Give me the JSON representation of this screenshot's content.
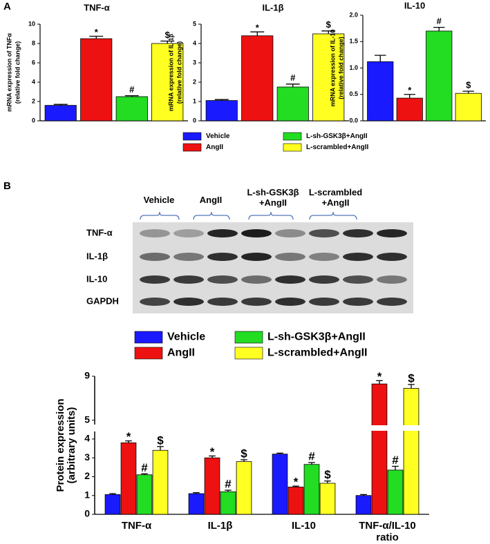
{
  "panel_labels": [
    "A",
    "B"
  ],
  "blot": {
    "lanes": [
      "Vehicle",
      "AngII",
      "L-sh-GSK3β +AngII",
      "L-scrambled +AngII"
    ],
    "rows": [
      "TNF-α",
      "IL-1β",
      "IL-10",
      "GAPDH"
    ]
  },
  "chart_data": [
    {
      "type": "bar",
      "title": "TNF-α",
      "ylabel": [
        "mRNA expression of TNFα",
        "(relative fold change)"
      ],
      "categories": [
        null
      ],
      "ylim": [
        0,
        10
      ],
      "yticks": [
        0,
        2,
        4,
        6,
        8,
        10
      ],
      "series": [
        {
          "name": "Vehicle",
          "color": "#1a1aff",
          "values": [
            1.6
          ],
          "errors": [
            0.1
          ]
        },
        {
          "name": "AngII",
          "color": "#ee1111",
          "values": [
            8.5
          ],
          "errors": [
            0.25
          ],
          "annotation": "*"
        },
        {
          "name": "L-sh-GSK3β+AngII",
          "color": "#22dd22",
          "values": [
            2.5
          ],
          "errors": [
            0.1
          ],
          "annotation": "#"
        },
        {
          "name": "L-scrambled+AngII",
          "color": "#ffff22",
          "values": [
            8.0
          ],
          "errors": [
            0.25
          ],
          "annotation": "$"
        }
      ]
    },
    {
      "type": "bar",
      "title": "IL-1β",
      "ylabel": [
        "mRNA expression of IL-1β",
        "(relative fold change)"
      ],
      "categories": [
        null
      ],
      "ylim": [
        0,
        5
      ],
      "yticks": [
        0,
        1,
        2,
        3,
        4,
        5
      ],
      "series": [
        {
          "name": "Vehicle",
          "color": "#1a1aff",
          "values": [
            1.05
          ],
          "errors": [
            0.05
          ]
        },
        {
          "name": "AngII",
          "color": "#ee1111",
          "values": [
            4.4
          ],
          "errors": [
            0.2
          ],
          "annotation": "*"
        },
        {
          "name": "L-sh-GSK3β+AngII",
          "color": "#22dd22",
          "values": [
            1.75
          ],
          "errors": [
            0.15
          ],
          "annotation": "#"
        },
        {
          "name": "L-scrambled+AngII",
          "color": "#ffff22",
          "values": [
            4.5
          ],
          "errors": [
            0.15
          ],
          "annotation": "$"
        }
      ]
    },
    {
      "type": "bar",
      "title": "IL-10",
      "ylabel": [
        "mRNA expression of IL-10",
        "(relative fold change)"
      ],
      "categories": [
        null
      ],
      "ylim": [
        0,
        2
      ],
      "yticks": [
        {
          "value": 0,
          "label": "0.0"
        },
        {
          "value": 0.5,
          "label": "0.5"
        },
        {
          "value": 1,
          "label": "1.0"
        },
        {
          "value": 1.5,
          "label": "1.5"
        },
        {
          "value": 2,
          "label": "2.0"
        }
      ],
      "series": [
        {
          "name": "Vehicle",
          "color": "#1a1aff",
          "values": [
            1.12
          ],
          "errors": [
            0.12
          ]
        },
        {
          "name": "AngII",
          "color": "#ee1111",
          "values": [
            0.43
          ],
          "errors": [
            0.07
          ],
          "annotation": "*"
        },
        {
          "name": "L-sh-GSK3β+AngII",
          "color": "#22dd22",
          "values": [
            1.7
          ],
          "errors": [
            0.07
          ],
          "annotation": "#"
        },
        {
          "name": "L-scrambled+AngII",
          "color": "#ffff22",
          "values": [
            0.52
          ],
          "errors": [
            0.04
          ],
          "annotation": "$"
        }
      ]
    },
    {
      "type": "bar",
      "ylabel": [
        "Protein expression",
        "(arbitrary units)"
      ],
      "categories": [
        "TNF-α",
        "IL-1β",
        "IL-10",
        "TNF-α/IL-10 ratio"
      ],
      "ylim": [
        0,
        9
      ],
      "yticks": [
        0,
        1,
        2,
        3,
        4,
        5,
        9
      ],
      "axis_break": [
        4.4,
        4.6
      ],
      "series": [
        {
          "name": "Vehicle",
          "color": "#1a1aff",
          "values": [
            1.05,
            1.1,
            3.2,
            1.0
          ],
          "errors": [
            0.05,
            0.05,
            0.05,
            0.05
          ]
        },
        {
          "name": "AngII",
          "color": "#ee1111",
          "values": [
            3.8,
            3.0,
            1.45,
            8.3
          ],
          "errors": [
            0.1,
            0.1,
            0.05,
            0.3
          ],
          "annotation": "*"
        },
        {
          "name": "L-sh-GSK3β+AngII",
          "color": "#22dd22",
          "values": [
            2.1,
            1.2,
            2.65,
            2.35
          ],
          "errors": [
            0.05,
            0.08,
            0.1,
            0.2
          ],
          "annotation": "#"
        },
        {
          "name": "L-scrambled+AngII",
          "color": "#ffff22",
          "values": [
            3.4,
            2.8,
            1.65,
            7.9
          ],
          "errors": [
            0.2,
            0.1,
            0.12,
            0.35
          ],
          "annotation": "$"
        }
      ]
    }
  ]
}
